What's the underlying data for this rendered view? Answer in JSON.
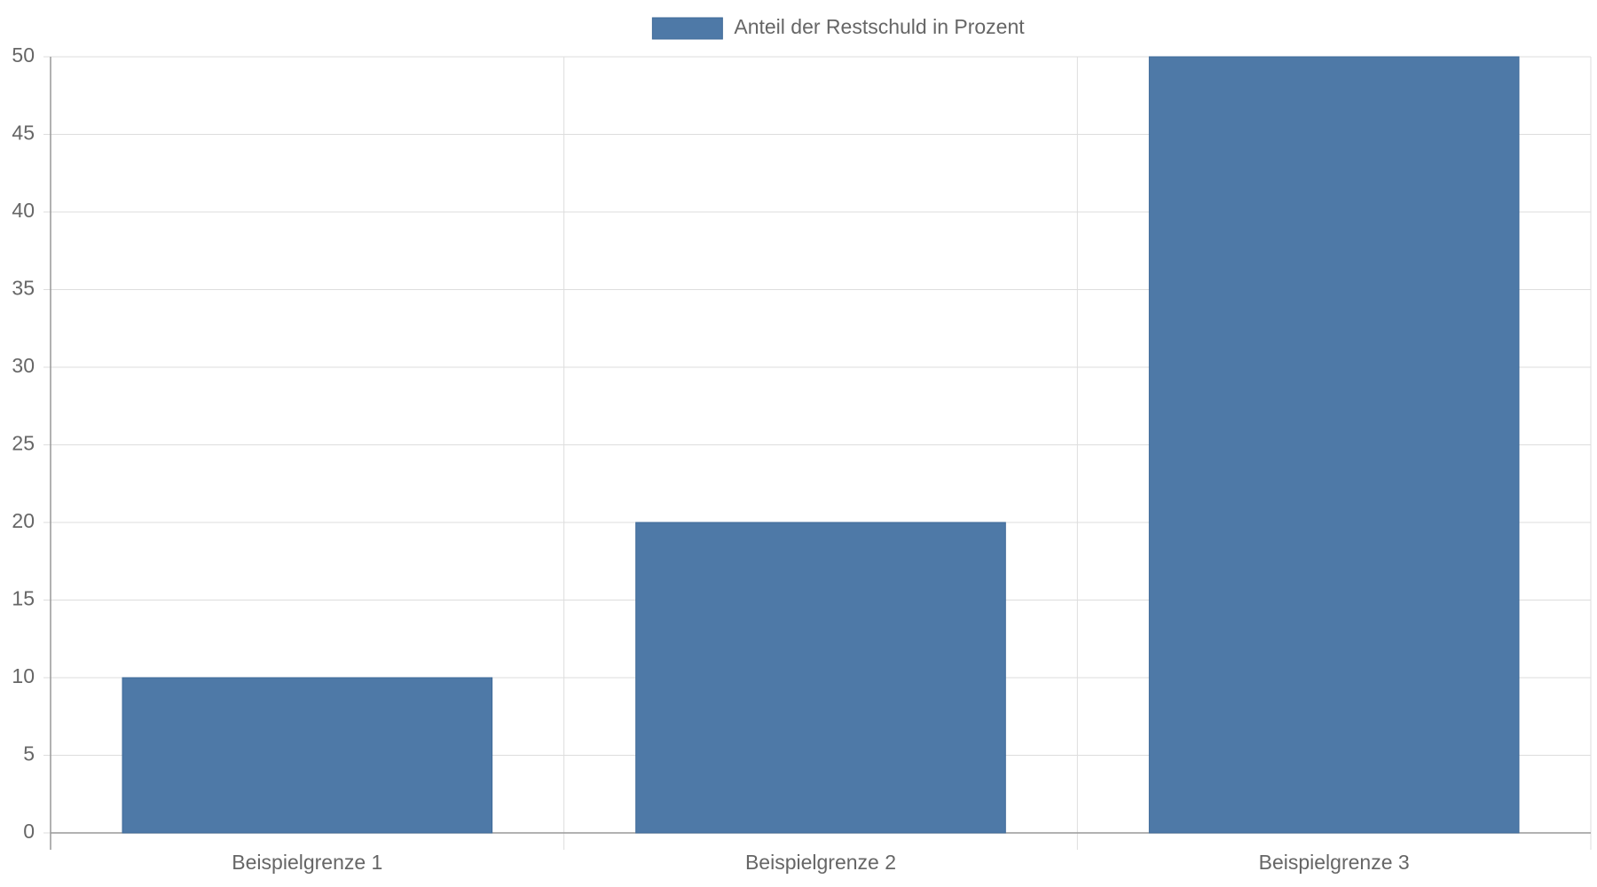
{
  "chart_data": {
    "type": "bar",
    "categories": [
      "Beispielgrenze 1",
      "Beispielgrenze 2",
      "Beispielgrenze 3"
    ],
    "series": [
      {
        "name": "Anteil der Restschuld in Prozent",
        "color": "#4e79a7",
        "values": [
          10,
          20,
          50
        ]
      }
    ],
    "ylim": [
      0,
      50
    ],
    "yticks": [
      0,
      5,
      10,
      15,
      20,
      25,
      30,
      35,
      40,
      45,
      50
    ],
    "grid": true,
    "legend": "top"
  }
}
